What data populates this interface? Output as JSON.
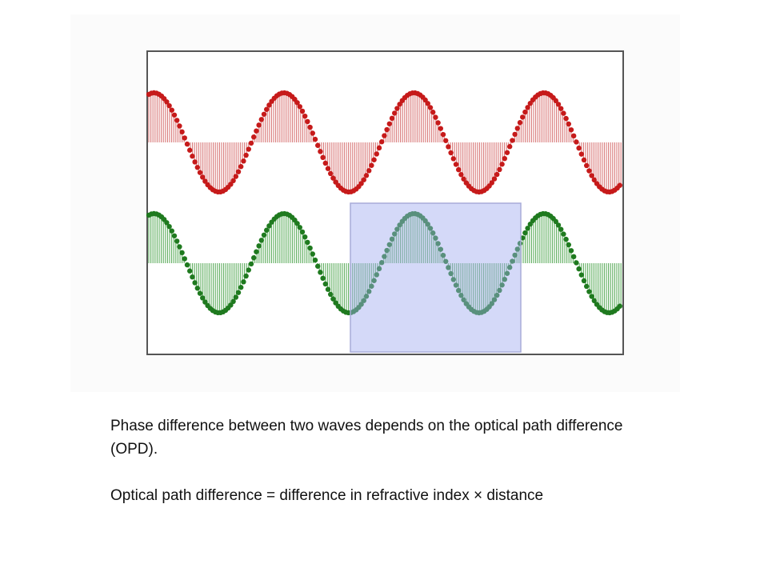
{
  "paragraphs": [
    "Phase difference between two waves depends on the optical path difference (OPD).",
    "Optical path difference = difference in refractive index × distance"
  ]
}
